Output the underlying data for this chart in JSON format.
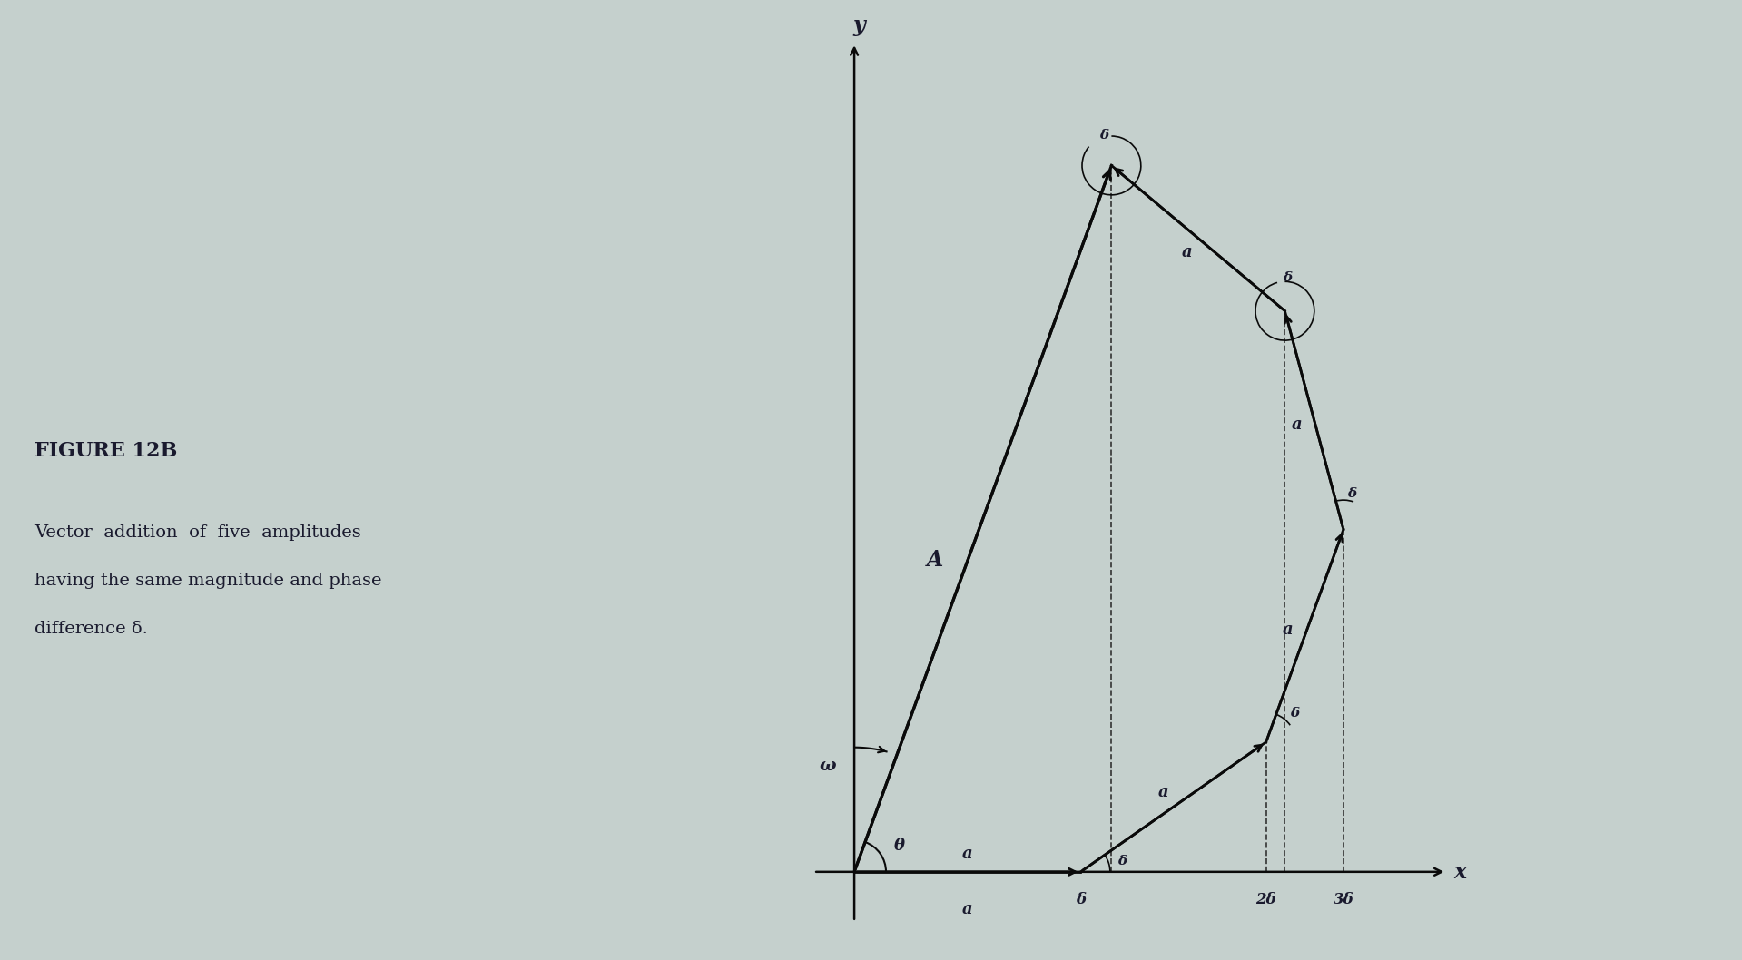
{
  "background_color": "#c5d0cd",
  "vector_magnitude": 1.0,
  "delta_deg": 35,
  "num_vectors": 5,
  "text_color": "#1a1a2e",
  "line_color": "#0a0a0a",
  "dashed_color": "#333333",
  "axis_label_y": "y",
  "axis_label_x": "x",
  "label_A": "A",
  "label_omega": "ω",
  "label_theta": "θ",
  "label_a": "a",
  "label_delta": "δ",
  "label_2delta": "2δ",
  "label_3delta": "3δ",
  "figsize": [
    19.19,
    10.58
  ],
  "dpi": 100,
  "caption_line1": "FIGURE 12B",
  "caption_line2": "Vector  addition  of  five  amplitudes",
  "caption_line3": "having the same magnitude and phase",
  "caption_line4": "difference δ."
}
